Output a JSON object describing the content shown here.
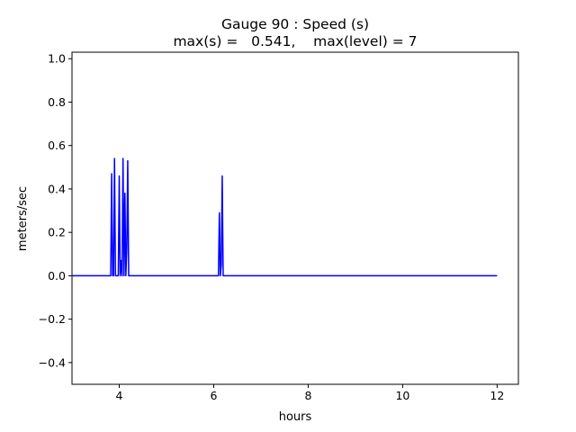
{
  "chart_data": {
    "type": "line",
    "title_line1": "Gauge 90 : Speed (s)",
    "title_line2": "max(s) =   0.541,    max(level) = 7",
    "xlabel": "hours",
    "ylabel": "meters/sec",
    "xlim": [
      3.0,
      12.45
    ],
    "ylim": [
      -0.5,
      1.03
    ],
    "xticks": [
      4,
      6,
      8,
      10,
      12
    ],
    "yticks": [
      -0.4,
      -0.2,
      0.0,
      0.2,
      0.4,
      0.6,
      0.8,
      1.0
    ],
    "xtick_labels": [
      "4",
      "6",
      "8",
      "10",
      "12"
    ],
    "ytick_labels": [
      "−0.4",
      "−0.2",
      "0.0",
      "0.2",
      "0.4",
      "0.6",
      "0.8",
      "1.0"
    ],
    "grid": false,
    "series": [
      {
        "color": "#0000ff",
        "x": [
          3.0,
          3.82,
          3.84,
          3.86,
          3.88,
          3.9,
          3.92,
          3.94,
          3.96,
          3.98,
          4.0,
          4.02,
          4.04,
          4.06,
          4.08,
          4.1,
          4.12,
          4.14,
          4.16,
          4.18,
          4.2,
          4.22,
          4.24,
          4.26,
          4.28,
          6.08,
          6.1,
          6.12,
          6.14,
          6.16,
          6.18,
          6.2,
          6.22,
          6.24,
          6.26,
          12.0
        ],
        "y": [
          0.0,
          0.0,
          0.47,
          0.0,
          0.0,
          0.54,
          0.0,
          0.0,
          0.0,
          0.0,
          0.46,
          0.0,
          0.07,
          0.0,
          0.54,
          0.0,
          0.38,
          0.0,
          0.12,
          0.53,
          0.0,
          0.0,
          0.0,
          0.0,
          0.0,
          0.0,
          0.0,
          0.29,
          0.0,
          0.05,
          0.46,
          0.0,
          0.0,
          0.0,
          0.0,
          0.0
        ]
      }
    ]
  }
}
